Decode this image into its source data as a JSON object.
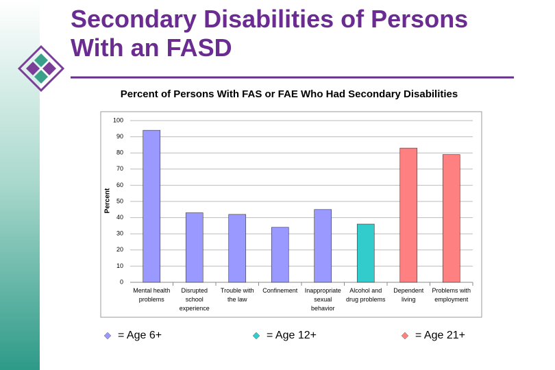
{
  "page_title": "Secondary Disabilities of Persons With an FASD",
  "chart_data": {
    "type": "bar",
    "title": "Percent of Persons With FAS or FAE Who Had Secondary Disabilities",
    "y_label": "Percent",
    "categories": [
      "Mental health problems",
      "Disrupted school experience",
      "Trouble with the law",
      "Confinement",
      "Inappropriate sexual behavior",
      "Alcohol and drug problems",
      "Dependent living",
      "Problems with employment"
    ],
    "values": [
      94,
      43,
      42,
      34,
      45,
      36,
      83,
      79
    ],
    "colors": [
      "#9999ff",
      "#9999ff",
      "#9999ff",
      "#9999ff",
      "#9999ff",
      "#33cccc",
      "#ff8080",
      "#ff8080"
    ],
    "ylim": [
      0,
      100
    ],
    "yticks": [
      0,
      10,
      20,
      30,
      40,
      50,
      60,
      70,
      80,
      90,
      100
    ],
    "grid": true,
    "legend": [
      {
        "label": "= Age 6+",
        "color": "#9999ff"
      },
      {
        "label": "= Age 12+",
        "color": "#33cccc"
      },
      {
        "label": "= Age 21+",
        "color": "#ff8080"
      }
    ]
  }
}
